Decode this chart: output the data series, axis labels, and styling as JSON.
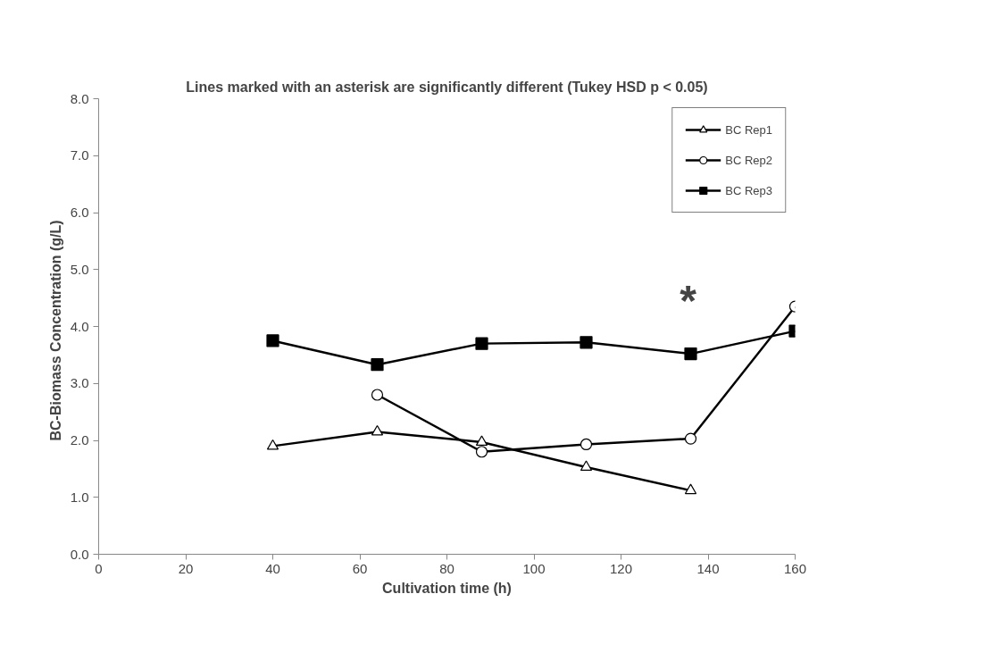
{
  "chart_data": {
    "type": "line",
    "title": "Lines marked with an asterisk are significantly different (Tukey HSD p < 0.05)",
    "xlabel": "Cultivation time (h)",
    "ylabel": "BC-Biomass Concentration   (g/L)",
    "series": [
      {
        "name": "BC Rep1",
        "color": "#000000",
        "marker": "triangle",
        "x": [
          40,
          64,
          88,
          112,
          136
        ],
        "values": [
          1.9,
          2.15,
          1.97,
          1.53,
          1.12
        ]
      },
      {
        "name": "BC Rep2",
        "color": "#000000",
        "marker": "circle",
        "x": [
          64,
          88,
          112,
          136,
          160
        ],
        "values": [
          2.8,
          1.8,
          1.93,
          2.03,
          4.35
        ]
      },
      {
        "name": "BC Rep3",
        "color": "#000000",
        "marker": "square",
        "x": [
          40,
          64,
          88,
          112,
          136,
          160
        ],
        "values": [
          3.75,
          3.33,
          3.7,
          3.72,
          3.52,
          3.92
        ]
      }
    ],
    "annotations": [
      {
        "text": "*",
        "x": 136,
        "y": 3.52
      }
    ],
    "xlim": [
      0,
      160
    ],
    "xticks": [
      0,
      20,
      40,
      60,
      80,
      100,
      120,
      140,
      160
    ],
    "ylim": [
      0,
      8
    ],
    "yticks": [
      {
        "value": 0,
        "label": "0.0"
      },
      {
        "value": 1,
        "label": "1.0"
      },
      {
        "value": 2,
        "label": "2.0"
      },
      {
        "value": 3,
        "label": "3.0"
      },
      {
        "value": 4,
        "label": "4.0"
      },
      {
        "value": 5,
        "label": "5.0"
      },
      {
        "value": 6,
        "label": "6.0"
      },
      {
        "value": 7,
        "label": "7.0"
      },
      {
        "value": 8,
        "label": "8.0"
      }
    ],
    "grid": false,
    "legend": "top right",
    "line_style": "solid"
  }
}
